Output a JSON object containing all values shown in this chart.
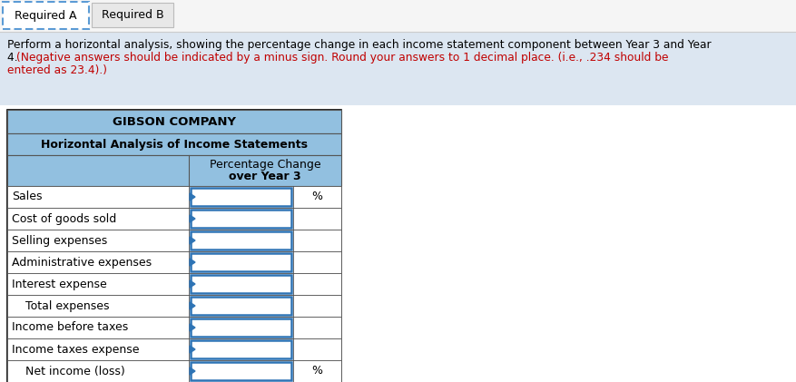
{
  "tab1_text": "Required A",
  "tab2_text": "Required B",
  "company_title": "GIBSON COMPANY",
  "subtitle": "Horizontal Analysis of Income Statements",
  "col_header1": "Percentage Change",
  "col_header2": "over Year 3",
  "rows": [
    {
      "label": "Sales",
      "indent": false,
      "show_pct": true
    },
    {
      "label": "Cost of goods sold",
      "indent": false,
      "show_pct": false
    },
    {
      "label": "Selling expenses",
      "indent": false,
      "show_pct": false
    },
    {
      "label": "Administrative expenses",
      "indent": false,
      "show_pct": false
    },
    {
      "label": "Interest expense",
      "indent": false,
      "show_pct": false
    },
    {
      "label": "Total expenses",
      "indent": true,
      "show_pct": false
    },
    {
      "label": "Income before taxes",
      "indent": false,
      "show_pct": false
    },
    {
      "label": "Income taxes expense",
      "indent": false,
      "show_pct": false
    },
    {
      "label": "Net income (loss)",
      "indent": true,
      "show_pct": true
    }
  ],
  "header_bg": "#92c0e0",
  "tab_active_bg": "#ffffff",
  "tab_inactive_bg": "#e8e8e8",
  "instruction_bg": "#dce6f1",
  "table_border": "#555555",
  "input_border": "#2e74b5",
  "fig_bg": "#ffffff",
  "instr_black": "Perform a horizontal analysis, showing the percentage change in each income statement component between Year 3 and Year 4.",
  "instr_red": "(Negative answers should be indicated by a minus sign. Round your answers to 1 decimal place. (i.e., .234 should be entered as 23.4).)"
}
